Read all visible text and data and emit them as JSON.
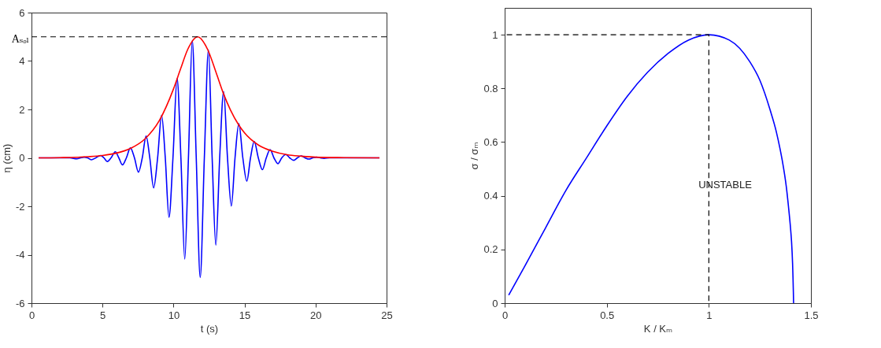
{
  "chart_data": [
    {
      "type": "line",
      "xlabel": "t  (s)",
      "ylabel": "η (cm)",
      "xlim": [
        0,
        25
      ],
      "xticks": [
        0,
        5,
        10,
        15,
        20,
        25
      ],
      "ylim": [
        -6,
        6
      ],
      "yticks": [
        -6,
        -4,
        -2,
        0,
        2,
        4,
        6
      ],
      "series": [
        {
          "color": "#0000ff",
          "x": [
            0.5,
            2.7,
            3.2,
            3.45,
            3.7,
            3.95,
            4.21,
            4.53,
            4.86,
            5.1,
            5.33,
            5.6,
            5.9,
            6.15,
            6.4,
            6.68,
            6.96,
            7.25,
            7.53,
            7.8,
            8.07,
            8.33,
            8.6,
            8.88,
            9.16,
            9.42,
            9.68,
            9.96,
            10.25,
            10.52,
            10.79,
            11.05,
            11.32,
            11.6,
            11.88,
            12.17,
            12.46,
            12.72,
            12.98,
            13.25,
            13.53,
            13.8,
            14.07,
            14.33,
            14.6,
            14.88,
            15.16,
            15.42,
            15.68,
            15.97,
            16.26,
            16.53,
            16.8,
            17.07,
            17.35,
            17.62,
            17.9,
            18.18,
            18.46,
            18.72,
            18.98,
            19.26,
            19.54,
            19.8,
            20.07,
            20.33,
            20.6,
            21,
            24.5
          ],
          "values": [
            0,
            0,
            -0.04,
            0,
            0.03,
            0,
            -0.08,
            0,
            0.1,
            0,
            -0.15,
            0,
            0.25,
            0,
            -0.29,
            0,
            0.41,
            0,
            -0.59,
            0,
            0.9,
            0,
            -1.24,
            0,
            1.76,
            0,
            -2.45,
            0,
            3.28,
            0,
            -4.18,
            0,
            4.84,
            0,
            -4.94,
            0,
            4.46,
            0,
            -3.61,
            0,
            2.74,
            0,
            -1.99,
            0,
            1.41,
            0,
            -0.96,
            0,
            0.68,
            0,
            -0.49,
            0,
            0.34,
            0,
            -0.24,
            0,
            0.14,
            0,
            -0.1,
            0,
            0.08,
            0,
            -0.05,
            0,
            0.03,
            0,
            -0.02,
            0,
            0
          ]
        },
        {
          "color": "#ff0000",
          "x": [
            0.5,
            2,
            4,
            5,
            6,
            7,
            8,
            9,
            10,
            10.5,
            11,
            11.7,
            12.4,
            13,
            13.5,
            14,
            14.6,
            15,
            16,
            17,
            18,
            19,
            20,
            22,
            24.5
          ],
          "values": [
            0,
            0.01,
            0.05,
            0.1,
            0.2,
            0.4,
            0.79,
            1.54,
            2.85,
            3.68,
            4.48,
            5,
            4.48,
            3.52,
            2.68,
            1.99,
            1.35,
            1.03,
            0.52,
            0.27,
            0.13,
            0.07,
            0.03,
            0.01,
            0
          ]
        }
      ],
      "ref_lines": [
        {
          "axis": "y",
          "value": 5,
          "label": "Aₛₒₗ",
          "color": "#000000",
          "line_style": "dashed"
        }
      ]
    },
    {
      "type": "line",
      "xlabel": "K / Kₘ",
      "ylabel": "σ / σₘ",
      "xlim": [
        0,
        1.5
      ],
      "xticks": [
        0,
        0.5,
        1,
        1.5
      ],
      "ylim": [
        0,
        1.1
      ],
      "yticks": [
        0,
        0.2,
        0.4,
        0.6,
        0.8,
        1
      ],
      "series": [
        {
          "color": "#0000ff",
          "x": [
            0.02,
            0.1,
            0.2,
            0.3,
            0.4,
            0.5,
            0.6,
            0.7,
            0.8,
            0.9,
            1,
            1.1,
            1.2,
            1.25,
            1.3,
            1.33,
            1.35,
            1.36,
            1.38,
            1.39,
            1.4,
            1.405,
            1.41,
            1.414,
            1.415
          ],
          "values": [
            0.03,
            0.14,
            0.28,
            0.42,
            0.54,
            0.66,
            0.77,
            0.86,
            0.93,
            0.98,
            1,
            0.98,
            0.9,
            0.83,
            0.72,
            0.64,
            0.57,
            0.53,
            0.43,
            0.36,
            0.28,
            0.23,
            0.15,
            0.04,
            0
          ]
        },
        {
          "color": "#000000",
          "line_style": "dashed",
          "x": [
            0.01,
            1,
            1
          ],
          "values": [
            1,
            1,
            0
          ]
        }
      ],
      "annotations": [
        "UNSTABLE"
      ]
    }
  ]
}
